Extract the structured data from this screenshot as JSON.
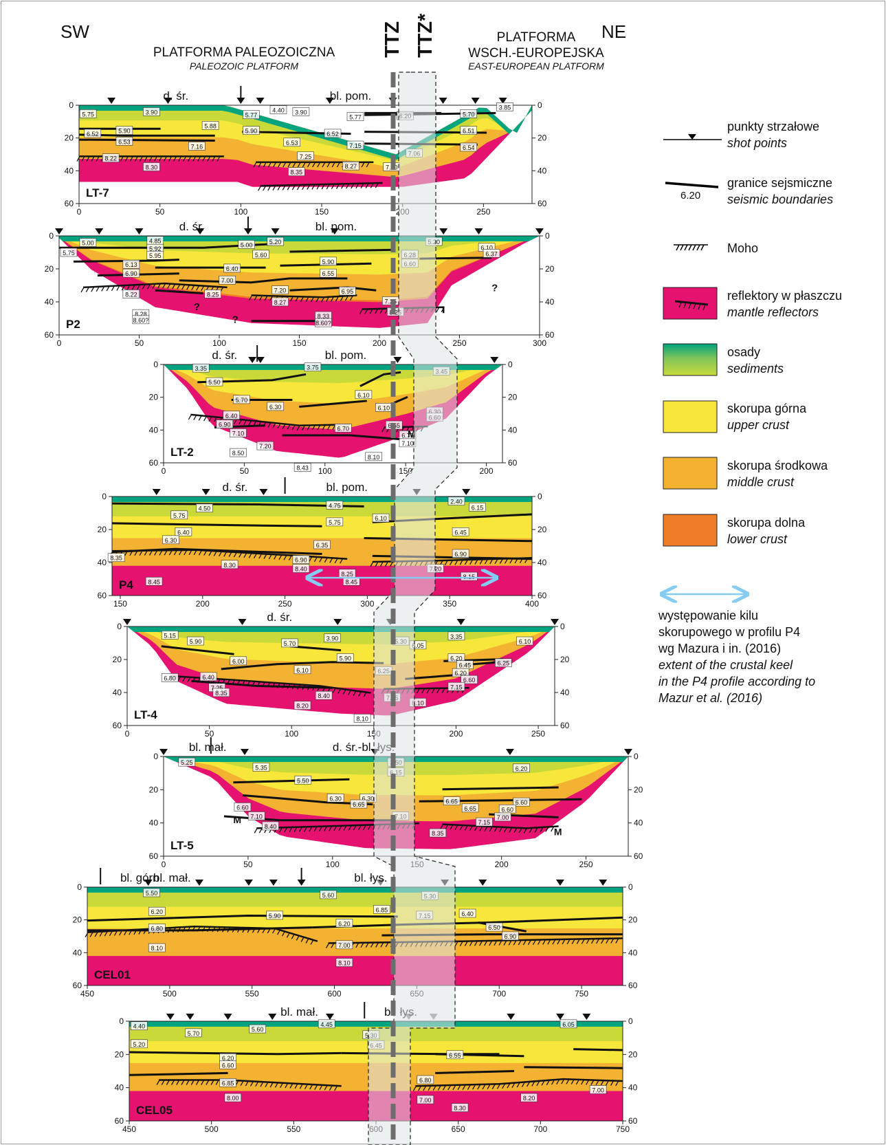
{
  "header": {
    "left_dir": "SW",
    "right_dir": "NE",
    "paleozoic_pl": "PLATFORMA PALEOZOICZNA",
    "paleozoic_en": "PALEOZOIC PLATFORM",
    "eep_pl_1": "PLATFORMA",
    "eep_pl_2": "WSCH.-EUROPEJSKA",
    "eep_en": "EAST-EUROPEAN PLATFORM",
    "ttz": "TTZ",
    "ttz_star": "TTZ*"
  },
  "colors": {
    "sediment_dark": "#00a47e",
    "sediment_light": "#c9d93a",
    "upper_crust": "#f7e73a",
    "middle_crust": "#f3b232",
    "lower_crust": "#ef7d26",
    "mantle": "#e5136f",
    "keel_arrow": "#86ccf0",
    "ttz_line": "#6d6d6d"
  },
  "legend": {
    "shot_pl": "punkty strzałowe",
    "shot_en": "shot points",
    "bnd_value": "6.20",
    "bnd_pl": "granice sejsmiczne",
    "bnd_en": "seismic boundaries",
    "moho": "Moho",
    "mantle_pl": "reflektory w płaszczu",
    "mantle_en": "mantle reflectors",
    "sed_pl": "osady",
    "sed_en": "sediments",
    "upper_pl": "skorupa górna",
    "upper_en": "upper crust",
    "middle_pl": "skorupa środkowa",
    "middle_en": "middle crust",
    "lower_pl": "skorupa dolna",
    "lower_en": "lower crust",
    "keel_pl": [
      "występowanie kilu",
      "skorupowego w profilu P4",
      "wg Mazura i in. (2016)"
    ],
    "keel_en": [
      "extent of the crustal keel",
      "in the P4 profile according to",
      "Mazur et al. (2016)"
    ]
  },
  "profiles": [
    {
      "name": "LT-7",
      "x_ticks": [
        "0",
        "50",
        "100",
        "150",
        "200",
        "250"
      ],
      "depth_ticks": [
        "0",
        "20",
        "40",
        "60"
      ],
      "units": [
        {
          "label": "d. śr."
        },
        {
          "label": "bl. pom."
        }
      ],
      "velocities": [
        "5.75",
        "3.90",
        "5.77",
        "4.40",
        "3.90",
        "5.77",
        "6.20",
        "5.70",
        "3.85",
        "6.52",
        "5.90",
        "5.88",
        "5.90",
        "6.52",
        "6.51",
        "6.53",
        "7.16",
        "6.53",
        "7.15",
        "6.54",
        "8.22",
        "7.25",
        "8.27",
        "7.06",
        "8.30",
        "8.35",
        "7.20"
      ]
    },
    {
      "name": "P2",
      "x_ticks": [
        "0",
        "50",
        "100",
        "150",
        "200",
        "250",
        "300"
      ],
      "depth_ticks": [
        "0",
        "20",
        "40",
        "60"
      ],
      "units": [
        {
          "label": "d. śr."
        },
        {
          "label": "bl. pom."
        }
      ],
      "velocities": [
        "5.00",
        "4.85",
        "5.92",
        "5.00",
        "5.20",
        "5.20",
        "5.75",
        "5.95",
        "5.60",
        "6.28",
        "6.10",
        "6.37",
        "6.13",
        "6.40",
        "5.90",
        "6.60",
        "6.90",
        "6.55",
        "7.00",
        "8.22",
        "7.20",
        "8.25",
        "6.95",
        "7.25",
        "8.27",
        "8.28",
        "8.60?",
        "8.25",
        "8.33",
        "8.60?"
      ],
      "question_marks": [
        "?",
        "?",
        "?"
      ]
    },
    {
      "name": "LT-2",
      "x_ticks": [
        "0",
        "50",
        "100",
        "150",
        "200"
      ],
      "depth_ticks": [
        "0",
        "20",
        "40",
        "60"
      ],
      "units": [
        {
          "label": "d. śr."
        },
        {
          "label": "bl. pom."
        }
      ],
      "velocities": [
        "3.35",
        "3.75",
        "3.45",
        "5.50",
        "6.10",
        "5.70",
        "6.30",
        "6.40",
        "6.10",
        "6.30",
        "6.90",
        "6.55",
        "6.60",
        "6.70",
        "7.10",
        "6.75",
        "7.20",
        "7.10",
        "8.50",
        "8.10",
        "8.43"
      ],
      "moho_label": "M"
    },
    {
      "name": "P4",
      "x_ticks": [
        "150",
        "200",
        "250",
        "300",
        "350",
        "400"
      ],
      "depth_ticks": [
        "0",
        "20",
        "40",
        "60"
      ],
      "units": [
        {
          "label": "d. śr."
        },
        {
          "label": "bl. pom."
        }
      ],
      "velocities": [
        "4.50",
        "4.75",
        "2.40",
        "6.15",
        "5.75",
        "5.75",
        "6.10",
        "6.40",
        "6.45",
        "6.30",
        "6.35",
        "6.90",
        "8.35",
        "6.90",
        "8.30",
        "8.40",
        "8.25",
        "7.20",
        "8.45",
        "8.45",
        "8.15"
      ],
      "keel_range": [
        262,
        380
      ]
    },
    {
      "name": "LT-4",
      "x_ticks": [
        "0",
        "50",
        "100",
        "150",
        "200",
        "250"
      ],
      "depth_ticks": [
        "0",
        "20",
        "40",
        "60"
      ],
      "units": [
        {
          "label": "d. śr."
        }
      ],
      "velocities": [
        "5.15",
        "5.90",
        "5.70",
        "3.90",
        "5.30",
        "3.35",
        "6.10",
        "6.05",
        "6.00",
        "5.90",
        "6.20",
        "6.45",
        "6.25",
        "6.20",
        "6.10",
        "6.25",
        "6.80",
        "6.40",
        "6.60",
        "7.25",
        "7.15",
        "8.35",
        "8.40",
        "7.25",
        "8.10",
        "8.20",
        "8.10"
      ]
    },
    {
      "name": "LT-5",
      "x_ticks": [
        "0",
        "50",
        "100",
        "150",
        "200",
        "250"
      ],
      "depth_ticks": [
        "0",
        "20",
        "40",
        "60"
      ],
      "units": [
        {
          "label": "bl. mał."
        },
        {
          "label": "d. śr.-bl. łys."
        }
      ],
      "velocities": [
        "5.25",
        "5.35",
        "3.50",
        "6.20",
        "6.15",
        "5.50",
        "6.30",
        "6.30",
        "6.60",
        "6.65",
        "6.65",
        "6.60",
        "6.65",
        "6.60",
        "7.10",
        "7.10",
        "7.15",
        "7.00",
        "8.40",
        "8.35"
      ],
      "moho_labels": [
        "M",
        "M"
      ]
    },
    {
      "name": "CEL01",
      "x_ticks": [
        "450",
        "500",
        "550",
        "600",
        "650",
        "700",
        "750"
      ],
      "depth_ticks": [
        "0",
        "20",
        "40",
        "60"
      ],
      "units": [
        {
          "label": "bl. górn."
        },
        {
          "label": "bl. mał."
        },
        {
          "label": "bl. łys."
        }
      ],
      "velocities": [
        "5.50",
        "5.60",
        "5.30",
        "6.85",
        "5.90",
        "7.15",
        "6.20",
        "6.40",
        "6.20",
        "6.50",
        "6.80",
        "6.90",
        "8.10",
        "7.00",
        "8.10"
      ]
    },
    {
      "name": "CEL05",
      "x_ticks": [
        "450",
        "500",
        "550",
        "600",
        "650",
        "700",
        "750"
      ],
      "depth_ticks": [
        "0",
        "20",
        "40",
        "60"
      ],
      "units": [
        {
          "label": "bl. mał."
        },
        {
          "label": "bl. łys."
        }
      ],
      "velocities": [
        "4.40",
        "5.70",
        "5.60",
        "4.45",
        "6.05",
        "5.20",
        "5.30",
        "6.45",
        "6.20",
        "6.55",
        "6.60",
        "6.80",
        "6.85",
        "7.00",
        "8.00",
        "7.00",
        "8.20",
        "8.30"
      ]
    }
  ]
}
